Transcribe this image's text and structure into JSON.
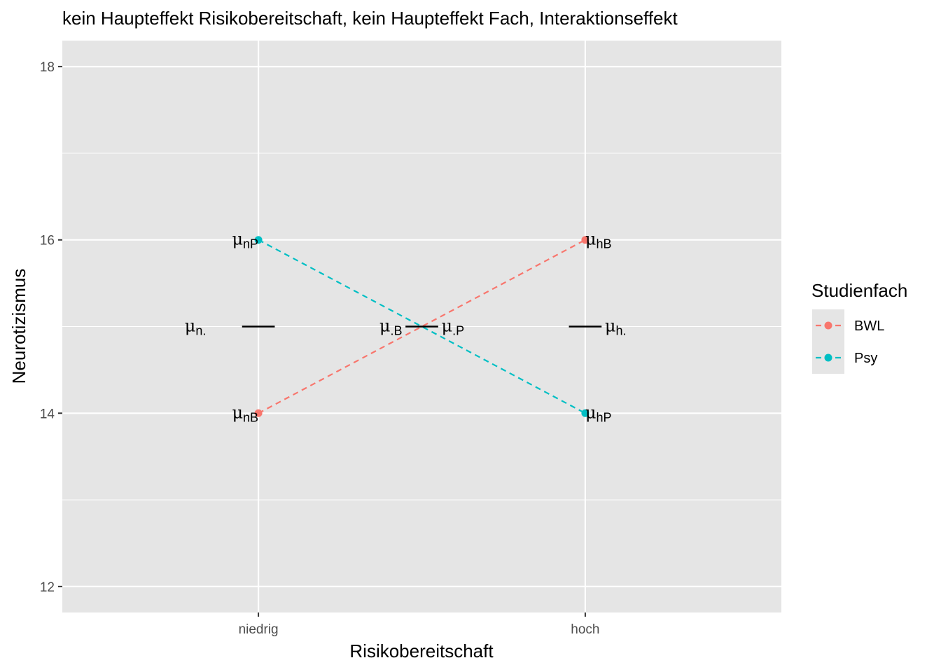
{
  "chart_data": {
    "type": "line",
    "title": "kein Haupteffekt Risikobereitschaft, kein Haupteffekt Fach, Interaktionseffekt",
    "xlabel": "Risikobereitschaft",
    "ylabel": "Neurotizismus",
    "categories": [
      "niedrig",
      "hoch"
    ],
    "ylim": [
      11.7,
      18.3
    ],
    "yticks": [
      12,
      14,
      16,
      18
    ],
    "grid": true,
    "legend": {
      "title": "Studienfach",
      "placement": "right",
      "entries": [
        "BWL",
        "Psy"
      ]
    },
    "series": [
      {
        "name": "BWL",
        "values": [
          14,
          16
        ],
        "color": "#F8766D",
        "linestyle": "dashed"
      },
      {
        "name": "Psy",
        "values": [
          16,
          14
        ],
        "color": "#00BFC4",
        "linestyle": "dashed"
      }
    ],
    "annotations": [
      {
        "id": "mu-nP",
        "symbol": "μ",
        "sub": "nP",
        "x": 1,
        "y": 16,
        "anchor": "end"
      },
      {
        "id": "mu-nB",
        "symbol": "μ",
        "sub": "nB",
        "x": 1,
        "y": 14,
        "anchor": "end"
      },
      {
        "id": "mu-hB",
        "symbol": "μ",
        "sub": "hB",
        "x": 2,
        "y": 16,
        "anchor": "start"
      },
      {
        "id": "mu-hP",
        "symbol": "μ",
        "sub": "hP",
        "x": 2,
        "y": 14,
        "anchor": "start"
      },
      {
        "id": "mu-n",
        "symbol": "μ",
        "sub": "n.",
        "x": 0.84,
        "y": 15,
        "anchor": "end"
      },
      {
        "id": "mu-h",
        "symbol": "μ",
        "sub": "h.",
        "x": 2.06,
        "y": 15,
        "anchor": "start"
      },
      {
        "id": "mu-B",
        "symbol": "μ",
        "sub": ".B",
        "x": 1.44,
        "y": 15,
        "anchor": "end"
      },
      {
        "id": "mu-P",
        "symbol": "μ",
        "sub": ".P",
        "x": 1.56,
        "y": 15,
        "anchor": "start"
      }
    ],
    "mean_segments": [
      {
        "id": "mean-niedrig",
        "x": [
          0.95,
          1.05
        ],
        "y": 15
      },
      {
        "id": "mean-hoch",
        "x": [
          1.95,
          2.05
        ],
        "y": 15
      },
      {
        "id": "mean-fach",
        "x": [
          1.45,
          1.55
        ],
        "y": 15
      }
    ],
    "colors": {
      "panel": "#E5E5E5",
      "grid": "#FFFFFF",
      "BWL": "#F8766D",
      "Psy": "#00BFC4"
    }
  }
}
